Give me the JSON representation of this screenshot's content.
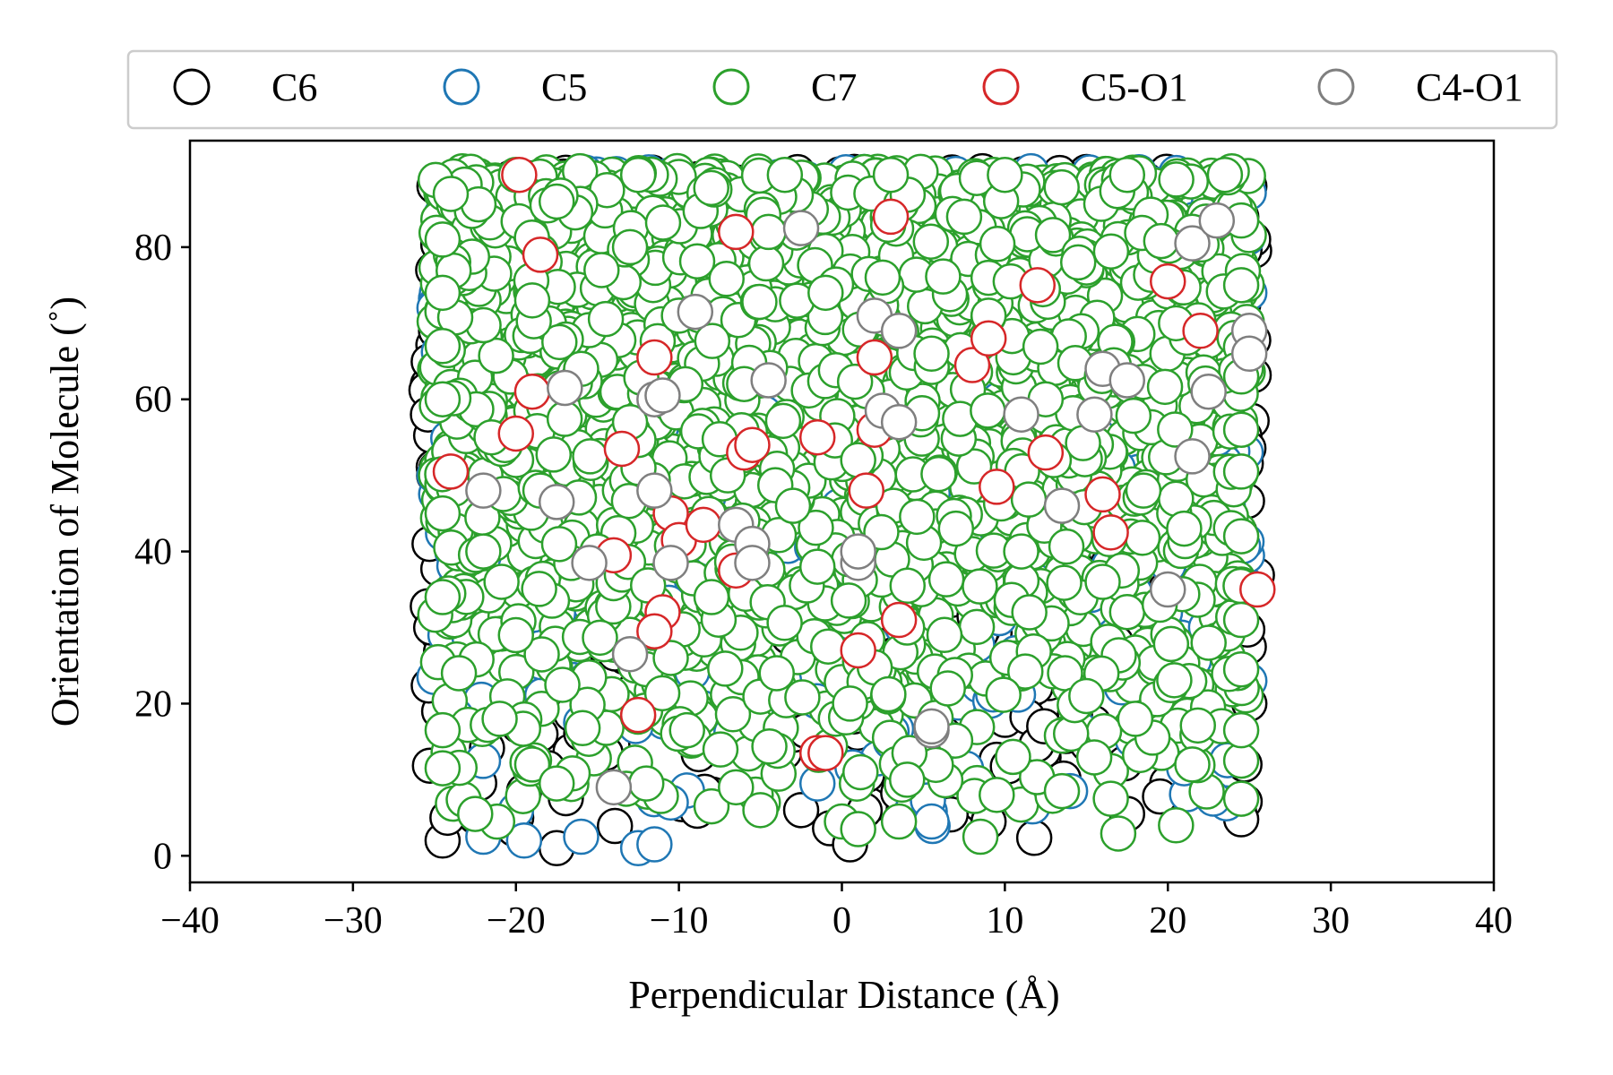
{
  "chart_data": {
    "type": "scatter",
    "xlabel": "Perpendicular Distance (Å)",
    "ylabel": "Orientation of Molecule (˚)",
    "xlim": [
      -40,
      40
    ],
    "ylim": [
      -3.5,
      94
    ],
    "xticks": [
      -40,
      -30,
      -20,
      -10,
      0,
      10,
      20,
      30,
      40
    ],
    "xtick_labels": [
      "−40",
      "−30",
      "−20",
      "−10",
      "0",
      "10",
      "20",
      "30",
      "40"
    ],
    "yticks": [
      0,
      20,
      40,
      60,
      80
    ],
    "ytick_labels": [
      "0",
      "20",
      "40",
      "60",
      "80"
    ],
    "grid": false,
    "legend_position": "top",
    "marker": "open-circle",
    "series": [
      {
        "name": "C6",
        "color": "#000000",
        "x_range": [
          -25.5,
          25.5
        ],
        "y_range": [
          0,
          90
        ],
        "points": [
          [
            -24.5,
            2.0
          ],
          [
            -24.2,
            5.0
          ],
          [
            -17.5,
            1.0
          ],
          [
            -19.5,
            8.5
          ],
          [
            -25.2,
            30.0
          ],
          [
            -25.3,
            41.0
          ],
          [
            -25.4,
            58.0
          ],
          [
            -25.0,
            88.0
          ],
          [
            24.5,
            4.8
          ],
          [
            24.7,
            12.0
          ],
          [
            25.0,
            20.0
          ],
          [
            25.0,
            88.0
          ],
          [
            0.5,
            1.5
          ],
          [
            -14.5,
            13.5
          ],
          [
            9.0,
            4.5
          ],
          [
            -7.5,
            15.0
          ],
          [
            -9.0,
            88.0
          ],
          [
            -2.5,
            6.0
          ],
          [
            14.0,
            88.0
          ],
          [
            17.5,
            5.5
          ],
          [
            21.0,
            14.0
          ],
          [
            -19.0,
            88.0
          ],
          [
            5.0,
            88.0
          ],
          [
            19.5,
            88.0
          ]
        ]
      },
      {
        "name": "C5",
        "color": "#1f77b4",
        "x_range": [
          -25.0,
          25.0
        ],
        "y_range": [
          1,
          90
        ],
        "points": [
          [
            -22.0,
            2.5
          ],
          [
            -19.5,
            2.0
          ],
          [
            -16.0,
            2.5
          ],
          [
            -12.5,
            1.0
          ],
          [
            -11.5,
            1.5
          ],
          [
            5.5,
            4.5
          ],
          [
            -1.5,
            9.5
          ],
          [
            -10.5,
            7.0
          ],
          [
            14.0,
            8.5
          ],
          [
            -25.0,
            23.5
          ],
          [
            -25.0,
            72.0
          ],
          [
            -25.0,
            50.0
          ],
          [
            25.0,
            23.0
          ],
          [
            25.0,
            74.0
          ],
          [
            -16.0,
            17.5
          ],
          [
            21.0,
            11.5
          ],
          [
            3.0,
            15.0
          ],
          [
            -3.5,
            30.0
          ],
          [
            12.0,
            45.0
          ],
          [
            8.5,
            56.0
          ],
          [
            -20.0,
            38.0
          ],
          [
            16.0,
            88.0
          ],
          [
            -14.0,
            88.0
          ],
          [
            2.5,
            88.0
          ],
          [
            -5.5,
            88.0
          ]
        ]
      },
      {
        "name": "C7",
        "color": "#2ca02c",
        "x_range": [
          -25.0,
          25.0
        ],
        "y_range": [
          2,
          90
        ],
        "points": [
          [
            -24.5,
            11.5
          ],
          [
            -24.5,
            16.5
          ],
          [
            -24.5,
            34.0
          ],
          [
            -24.5,
            45.0
          ],
          [
            -24.5,
            60.0
          ],
          [
            -24.5,
            74.0
          ],
          [
            -24.5,
            81.0
          ],
          [
            -24.0,
            87.0
          ],
          [
            -23.5,
            24.0
          ],
          [
            -24.5,
            67.0
          ],
          [
            -22.5,
            5.5
          ],
          [
            -21.0,
            18.0
          ],
          [
            -19.0,
            12.0
          ],
          [
            -17.5,
            9.5
          ],
          [
            -20.0,
            29.0
          ],
          [
            -21.5,
            55.0
          ],
          [
            -19.0,
            73.0
          ],
          [
            -17.5,
            86.0
          ],
          [
            -15.0,
            40.0
          ],
          [
            -13.0,
            57.0
          ],
          [
            -12.0,
            9.5
          ],
          [
            -9.5,
            16.5
          ],
          [
            -8.0,
            6.5
          ],
          [
            -6.5,
            9.0
          ],
          [
            -5.0,
            6.0
          ],
          [
            -4.0,
            24.0
          ],
          [
            -3.0,
            46.0
          ],
          [
            -1.0,
            74.0
          ],
          [
            0.0,
            4.5
          ],
          [
            1.0,
            3.5
          ],
          [
            3.5,
            4.5
          ],
          [
            4.0,
            10.0
          ],
          [
            6.5,
            22.0
          ],
          [
            7.0,
            43.0
          ],
          [
            8.5,
            2.5
          ],
          [
            9.5,
            8.0
          ],
          [
            10.5,
            13.0
          ],
          [
            11.5,
            32.0
          ],
          [
            13.5,
            8.5
          ],
          [
            15.0,
            21.0
          ],
          [
            16.5,
            7.5
          ],
          [
            18.0,
            18.0
          ],
          [
            19.5,
            33.0
          ],
          [
            20.5,
            4.0
          ],
          [
            21.5,
            12.0
          ],
          [
            22.5,
            28.0
          ],
          [
            24.5,
            7.5
          ],
          [
            24.5,
            12.5
          ],
          [
            24.5,
            16.5
          ],
          [
            24.5,
            24.5
          ],
          [
            24.5,
            31.0
          ],
          [
            24.5,
            42.0
          ],
          [
            24.5,
            50.5
          ],
          [
            24.5,
            56.0
          ],
          [
            24.5,
            63.0
          ],
          [
            24.5,
            75.0
          ],
          [
            24.5,
            83.5
          ],
          [
            23.5,
            89.5
          ],
          [
            -20.0,
            89.5
          ],
          [
            -12.5,
            89.5
          ],
          [
            -3.5,
            89.5
          ],
          [
            3.0,
            89.5
          ],
          [
            10.0,
            89.5
          ],
          [
            17.5,
            89.5
          ],
          [
            -10.0,
            71.0
          ],
          [
            -6.0,
            62.0
          ],
          [
            1.0,
            52.0
          ],
          [
            5.5,
            66.0
          ],
          [
            12.5,
            60.0
          ],
          [
            18.5,
            48.0
          ],
          [
            -16.0,
            64.0
          ],
          [
            -8.0,
            34.0
          ],
          [
            -1.5,
            38.0
          ],
          [
            4.0,
            30.0
          ],
          [
            9.0,
            71.0
          ],
          [
            14.5,
            78.0
          ],
          [
            20.5,
            70.0
          ],
          [
            -13.0,
            80.0
          ],
          [
            -4.5,
            82.0
          ],
          [
            7.5,
            84.0
          ],
          [
            16.0,
            36.0
          ],
          [
            -18.5,
            48.0
          ],
          [
            -7.0,
            50.0
          ],
          [
            2.5,
            76.0
          ],
          [
            11.0,
            40.0
          ],
          [
            21.0,
            43.0
          ],
          [
            -22.0,
            40.0
          ],
          [
            -10.5,
            26.0
          ],
          [
            0.5,
            20.0
          ],
          [
            13.0,
            52.0
          ]
        ]
      },
      {
        "name": "C5-O1",
        "color": "#d62728",
        "x_range": [
          -24.0,
          25.5
        ],
        "y_range": [
          13,
          90
        ],
        "points": [
          [
            -19.8,
            89.5
          ],
          [
            -18.5,
            79.0
          ],
          [
            -19.0,
            61.0
          ],
          [
            -20.0,
            55.5
          ],
          [
            -24.0,
            50.5
          ],
          [
            -13.5,
            53.5
          ],
          [
            -14.0,
            39.5
          ],
          [
            -11.5,
            65.5
          ],
          [
            -11.0,
            32.0
          ],
          [
            -11.5,
            29.5
          ],
          [
            -12.5,
            18.5
          ],
          [
            -10.5,
            45.0
          ],
          [
            -10.0,
            41.5
          ],
          [
            -8.5,
            43.5
          ],
          [
            -6.5,
            82.0
          ],
          [
            -6.5,
            37.5
          ],
          [
            -6.0,
            53.0
          ],
          [
            -5.5,
            54.0
          ],
          [
            -1.5,
            55.0
          ],
          [
            -1.5,
            13.5
          ],
          [
            -1.0,
            13.5
          ],
          [
            1.0,
            27.0
          ],
          [
            1.5,
            48.0
          ],
          [
            2.0,
            65.5
          ],
          [
            2.0,
            56.0
          ],
          [
            3.0,
            84.0
          ],
          [
            3.5,
            31.0
          ],
          [
            8.0,
            64.5
          ],
          [
            9.0,
            68.0
          ],
          [
            9.5,
            48.5
          ],
          [
            12.0,
            75.0
          ],
          [
            12.5,
            53.0
          ],
          [
            16.0,
            47.5
          ],
          [
            16.5,
            42.5
          ],
          [
            20.0,
            75.5
          ],
          [
            22.0,
            69.0
          ],
          [
            25.5,
            35.0
          ]
        ]
      },
      {
        "name": "C4-O1",
        "color": "#7f7f7f",
        "x_range": [
          -22.0,
          25.0
        ],
        "y_range": [
          9,
          84
        ],
        "points": [
          [
            -22.0,
            48.0
          ],
          [
            -17.5,
            46.5
          ],
          [
            -17.0,
            61.5
          ],
          [
            -15.5,
            38.5
          ],
          [
            -14.0,
            9.0
          ],
          [
            -13.0,
            26.5
          ],
          [
            -11.5,
            60.0
          ],
          [
            -11.0,
            60.5
          ],
          [
            -11.5,
            48.0
          ],
          [
            -10.5,
            38.5
          ],
          [
            -9.0,
            71.5
          ],
          [
            -6.5,
            43.5
          ],
          [
            -5.5,
            41.0
          ],
          [
            -5.5,
            38.5
          ],
          [
            -4.5,
            62.5
          ],
          [
            -2.5,
            82.5
          ],
          [
            1.0,
            38.5
          ],
          [
            1.0,
            40.0
          ],
          [
            2.0,
            71.0
          ],
          [
            2.5,
            58.5
          ],
          [
            3.5,
            57.0
          ],
          [
            3.5,
            69.0
          ],
          [
            5.5,
            16.5
          ],
          [
            5.5,
            17.0
          ],
          [
            11.0,
            58.0
          ],
          [
            13.5,
            46.0
          ],
          [
            15.5,
            58.0
          ],
          [
            16.0,
            64.0
          ],
          [
            17.5,
            62.5
          ],
          [
            20.0,
            35.0
          ],
          [
            21.5,
            80.5
          ],
          [
            21.5,
            52.5
          ],
          [
            22.5,
            61.0
          ],
          [
            23.0,
            83.5
          ],
          [
            25.0,
            69.0
          ],
          [
            25.0,
            66.0
          ]
        ]
      }
    ]
  }
}
